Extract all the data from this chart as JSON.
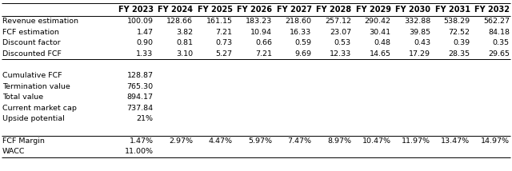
{
  "columns": [
    "",
    "FY 2023",
    "FY 2024",
    "FY 2025",
    "FY 2026",
    "FY 2027",
    "FY 2028",
    "FY 2029",
    "FY 2030",
    "FY 2031",
    "FY 2032"
  ],
  "rows": [
    {
      "label": "Revenue estimation",
      "values": [
        "100.09",
        "128.66",
        "161.15",
        "183.23",
        "218.60",
        "257.12",
        "290.42",
        "332.88",
        "538.29",
        "562.27"
      ],
      "bold": false
    },
    {
      "label": "FCF estimation",
      "values": [
        "1.47",
        "3.82",
        "7.21",
        "10.94",
        "16.33",
        "23.07",
        "30.41",
        "39.85",
        "72.52",
        "84.18"
      ],
      "bold": false
    },
    {
      "label": "Discount factor",
      "values": [
        "0.90",
        "0.81",
        "0.73",
        "0.66",
        "0.59",
        "0.53",
        "0.48",
        "0.43",
        "0.39",
        "0.35"
      ],
      "bold": false
    },
    {
      "label": "Discounted FCF",
      "values": [
        "1.33",
        "3.10",
        "5.27",
        "7.21",
        "9.69",
        "12.33",
        "14.65",
        "17.29",
        "28.35",
        "29.65"
      ],
      "bold": false
    }
  ],
  "summary_rows": [
    {
      "label": "Cumulative FCF",
      "value": "128.87"
    },
    {
      "label": "Termination value",
      "value": "765.30"
    },
    {
      "label": "Total value",
      "value": "894.17"
    },
    {
      "label": "Current market cap",
      "value": "737.84"
    },
    {
      "label": "Upside potential",
      "value": "21%"
    }
  ],
  "bottom_rows": [
    {
      "label": "FCF Margin",
      "values": [
        "1.47%",
        "2.97%",
        "4.47%",
        "5.97%",
        "7.47%",
        "8.97%",
        "10.47%",
        "11.97%",
        "13.47%",
        "14.97%"
      ]
    },
    {
      "label": "WACC",
      "values": [
        "11.00%",
        "",
        "",
        "",
        "",
        "",
        "",
        "",
        "",
        ""
      ]
    }
  ],
  "font_size": 6.8,
  "header_font_size": 7.0,
  "bg_color": "#FFFFFF",
  "line_color": "#000000",
  "text_color": "#000000"
}
